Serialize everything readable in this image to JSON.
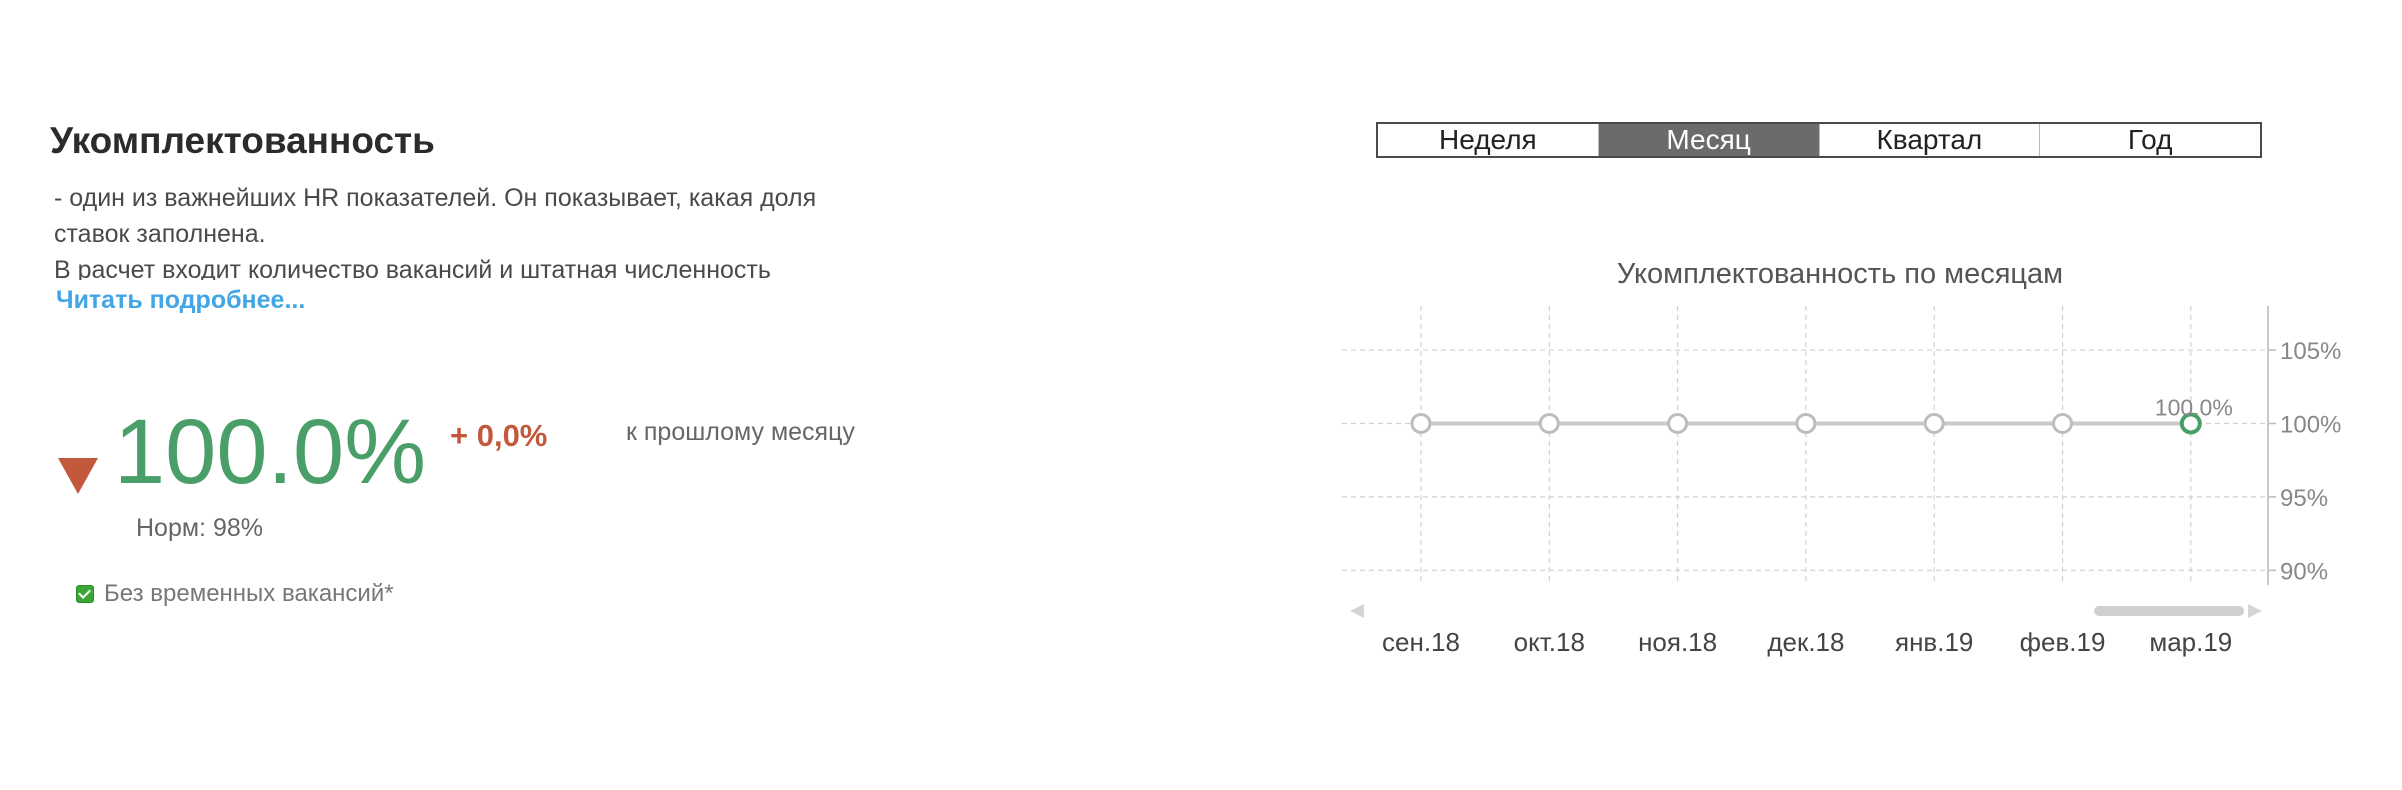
{
  "kpi": {
    "title": "Укомплектованность",
    "description_lines": [
      "- один из важнейших HR показателей. Он показывает, какая доля",
      "ставок заполнена.",
      "В расчет входит количество вакансий и штатная численность"
    ],
    "read_more": "Читать подробнее...",
    "value": "100.0%",
    "delta": "+ 0,0%",
    "delta_caption": "к прошлому месяцу",
    "norm": "Норм: 98%",
    "checkbox_label": "Без временных вакансий*",
    "checkbox_checked": true,
    "trend": "down"
  },
  "colors": {
    "accent_green": "#4a9e68",
    "delta_red": "#c2583c",
    "link_blue": "#42a5e6",
    "active_tab": "#6b6b6b"
  },
  "period_tabs": {
    "items": [
      "Неделя",
      "Месяц",
      "Квартал",
      "Год"
    ],
    "active": "Месяц"
  },
  "chart_data": {
    "type": "line",
    "title": "Укомплектованность по месяцам",
    "categories": [
      "сен.18",
      "окт.18",
      "ноя.18",
      "дек.18",
      "янв.19",
      "фев.19",
      "мар.19"
    ],
    "series": [
      {
        "values": [
          100,
          100,
          100,
          100,
          100,
          100,
          100
        ]
      }
    ],
    "point_label": "100.0%",
    "ylim": [
      89,
      108
    ],
    "yticks": [
      90,
      95,
      100,
      105
    ],
    "ytick_labels": [
      "90%",
      "95%",
      "100%",
      "105%"
    ],
    "grid": true,
    "y_axis_position": "right",
    "highlight_last_point": true
  }
}
